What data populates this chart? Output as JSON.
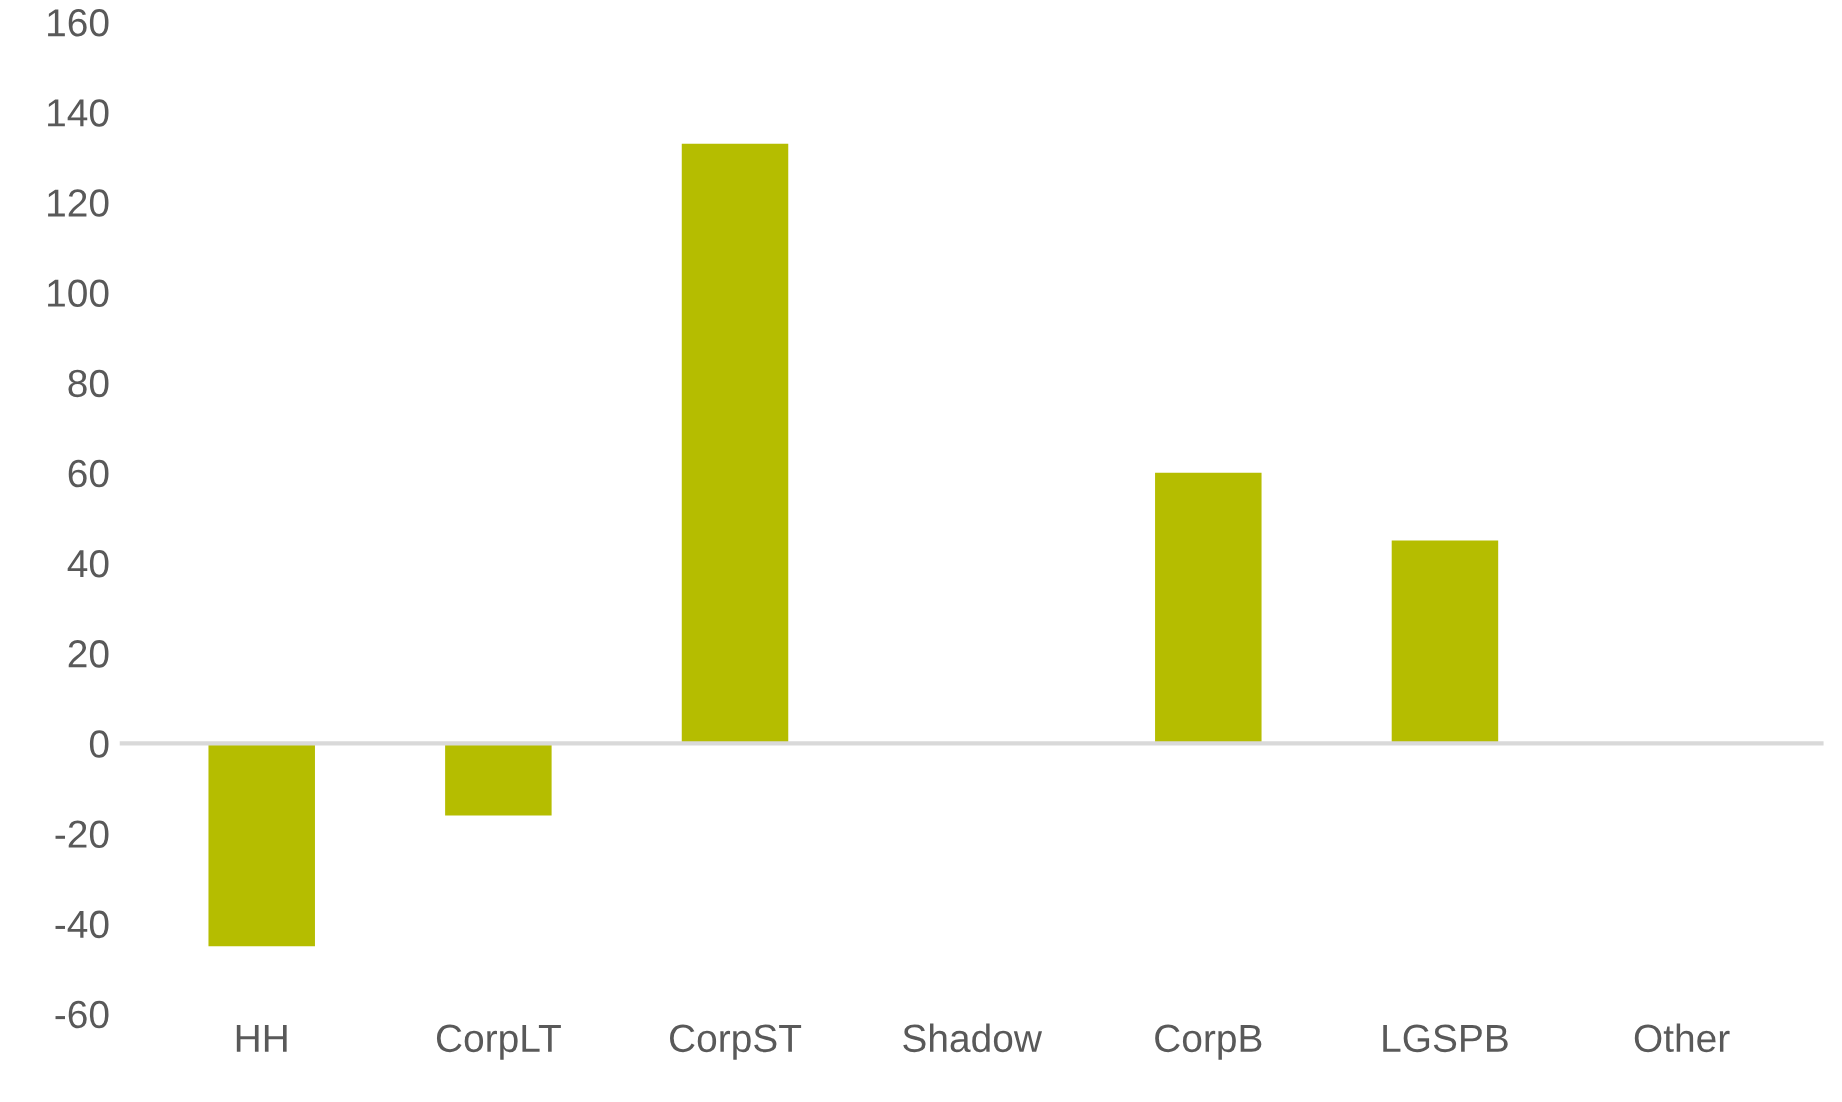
{
  "chart_data": {
    "type": "bar",
    "categories": [
      "HH",
      "CorpLT",
      "CorpST",
      "Shadow",
      "CorpB",
      "LGSPB",
      "Other"
    ],
    "values": [
      -45,
      -16,
      133,
      0,
      60,
      45,
      0
    ],
    "color": "#b5bd00",
    "ylim": [
      -60,
      160
    ],
    "yticks": [
      -60,
      -40,
      -20,
      0,
      20,
      40,
      60,
      80,
      100,
      120,
      140,
      160
    ],
    "ref_lines": [
      {
        "axis": "y",
        "value": 0,
        "color": "#d9d9d9"
      }
    ],
    "grid": false,
    "legend": false
  }
}
